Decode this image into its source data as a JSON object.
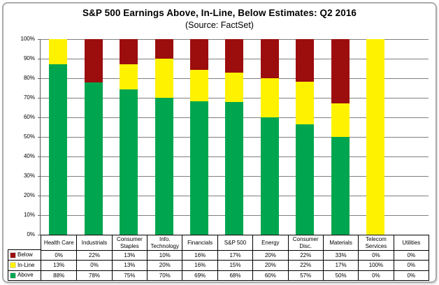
{
  "title": "S&P 500 Earnings Above, In-Line, Below Estimates: Q2 2016",
  "subtitle": "(Source: FactSet)",
  "colors": {
    "above": "#00A64F",
    "in_line": "#FFF200",
    "below": "#9C0D0D",
    "gridline": "#7F7F7F",
    "axis": "#5A5A5A",
    "table_border": "#000000",
    "figure_border": "#ABABAB",
    "background": "#FFFFFF"
  },
  "y_axis": {
    "tick_labels": [
      "100%",
      "90%",
      "80%",
      "70%",
      "60%",
      "50%",
      "40%",
      "30%",
      "20%",
      "10%",
      "0%"
    ]
  },
  "chart_data": {
    "type": "bar",
    "stacked": true,
    "title": "S&P 500 Earnings Above, In-Line, Below Estimates: Q2 2016",
    "subtitle": "(Source: FactSet)",
    "categories": [
      "Health Care",
      "Industrials",
      "Consumer Staples",
      "Info. Technology",
      "Financials",
      "S&P 500",
      "Energy",
      "Consumer Disc.",
      "Materials",
      "Telecom Services",
      "Utilities"
    ],
    "series": [
      {
        "name": "Below",
        "color": "#9C0D0D",
        "values": [
          0,
          22,
          13,
          10,
          16,
          17,
          20,
          22,
          33,
          0,
          0
        ]
      },
      {
        "name": "In-Line",
        "color": "#FFF200",
        "values": [
          13,
          0,
          13,
          20,
          16,
          15,
          20,
          22,
          17,
          100,
          0
        ]
      },
      {
        "name": "Above",
        "color": "#00A64F",
        "values": [
          88,
          78,
          75,
          70,
          69,
          68,
          60,
          57,
          50,
          0,
          0
        ]
      }
    ],
    "value_suffix": "%",
    "ylim": [
      0,
      100
    ],
    "ytick_step": 10,
    "grid": true,
    "legend_position": "table-left",
    "table_rows_order": [
      "Below",
      "In-Line",
      "Above"
    ]
  }
}
